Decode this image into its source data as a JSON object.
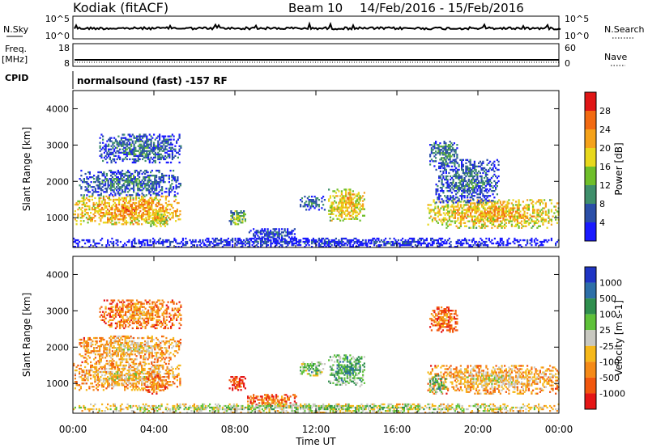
{
  "header": {
    "station": "Kodiak (fitACF)",
    "beam": "Beam 10",
    "date_range": "14/Feb/2016 - 15/Feb/2016",
    "cpid_text": "normalsound (fast) -157 RF"
  },
  "strips": {
    "nsky": {
      "label": "N.Sky",
      "ticks": [
        "10^5",
        "10^0"
      ],
      "right_ticks": [
        "10^5",
        "10^0"
      ],
      "right_label": "N.Search"
    },
    "freq": {
      "label_line1": "Freq.",
      "label_line2": "[MHz]",
      "ticks": [
        "18",
        "8"
      ],
      "right_ticks": [
        "60",
        "0"
      ],
      "right_label": "Nave"
    },
    "cpid": {
      "label": "CPID"
    }
  },
  "chart_data": [
    {
      "type": "heatmap",
      "panel": "power",
      "ylabel": "Slant Range [km]",
      "xlabel": "",
      "y_ticks": [
        1000,
        2000,
        3000,
        4000
      ],
      "ylim": [
        180,
        4500
      ],
      "colorbar": {
        "label": "Power [dB]",
        "ticks": [
          4,
          8,
          12,
          16,
          20,
          24,
          28
        ],
        "colors": [
          "#1a1aff",
          "#2b4fa8",
          "#3f8f6b",
          "#6fbf2a",
          "#e8d81c",
          "#f5a21a",
          "#f26a12",
          "#e01616"
        ]
      },
      "regions": [
        {
          "t0": 0.0,
          "t1": 5.3,
          "r0": 800,
          "r1": 1600,
          "level": 0.75
        },
        {
          "t0": 0.3,
          "t1": 5.3,
          "r0": 1600,
          "r1": 2300,
          "level": 0.3
        },
        {
          "t0": 1.3,
          "t1": 5.3,
          "r0": 2500,
          "r1": 3300,
          "level": 0.3
        },
        {
          "t0": 3.6,
          "t1": 4.6,
          "r0": 700,
          "r1": 1200,
          "level": 0.65
        },
        {
          "t0": 7.7,
          "t1": 8.5,
          "r0": 800,
          "r1": 1200,
          "level": 0.5
        },
        {
          "t0": 8.6,
          "t1": 11.0,
          "r0": 350,
          "r1": 700,
          "level": 0.2
        },
        {
          "t0": 12.6,
          "t1": 14.4,
          "r0": 900,
          "r1": 1800,
          "level": 0.7
        },
        {
          "t0": 11.2,
          "t1": 12.4,
          "r0": 1200,
          "r1": 1600,
          "level": 0.3
        },
        {
          "t0": 17.5,
          "t1": 24.0,
          "r0": 700,
          "r1": 1500,
          "level": 0.7
        },
        {
          "t0": 17.9,
          "t1": 21.0,
          "r0": 1400,
          "r1": 2600,
          "level": 0.3
        },
        {
          "t0": 17.6,
          "t1": 19.0,
          "r0": 2400,
          "r1": 3100,
          "level": 0.35
        },
        {
          "t0": 0.0,
          "t1": 24.0,
          "r0": 180,
          "r1": 420,
          "level": 0.15
        }
      ]
    },
    {
      "type": "heatmap",
      "panel": "velocity",
      "ylabel": "Slant Range [km]",
      "xlabel": "Time UT",
      "x_ticks": [
        "00:00",
        "04:00",
        "08:00",
        "12:00",
        "16:00",
        "20:00",
        "00:00"
      ],
      "xlim_hours": [
        0,
        24
      ],
      "y_ticks": [
        1000,
        2000,
        3000,
        4000
      ],
      "ylim": [
        180,
        4500
      ],
      "colorbar": {
        "label": "Velocity [m s-1]",
        "ticks": [
          "1000",
          "500",
          "100",
          "25",
          "-25",
          "-100",
          "-500",
          "-1000"
        ],
        "colors": [
          "#1f35c4",
          "#2d6fa8",
          "#2f8f4e",
          "#5fc23a",
          "#c8c8c0",
          "#f6b81a",
          "#f58a17",
          "#f2570e",
          "#e51616"
        ]
      },
      "regions": [
        {
          "t0": 0.0,
          "t1": 5.3,
          "r0": 800,
          "r1": 1600,
          "level": 0.45
        },
        {
          "t0": 0.3,
          "t1": 5.3,
          "r0": 1600,
          "r1": 2300,
          "level": 0.45
        },
        {
          "t0": 1.3,
          "t1": 5.3,
          "r0": 2500,
          "r1": 3300,
          "level": 0.35
        },
        {
          "t0": 3.6,
          "t1": 4.6,
          "r0": 700,
          "r1": 1200,
          "level": 0.3
        },
        {
          "t0": 7.7,
          "t1": 8.5,
          "r0": 800,
          "r1": 1200,
          "level": 0.2
        },
        {
          "t0": 8.6,
          "t1": 11.0,
          "r0": 350,
          "r1": 700,
          "level": 0.3
        },
        {
          "t0": 12.6,
          "t1": 14.4,
          "r0": 900,
          "r1": 1800,
          "level": 0.75
        },
        {
          "t0": 11.2,
          "t1": 12.4,
          "r0": 1200,
          "r1": 1600,
          "level": 0.7
        },
        {
          "t0": 17.5,
          "t1": 24.0,
          "r0": 700,
          "r1": 1500,
          "level": 0.45
        },
        {
          "t0": 17.6,
          "t1": 18.4,
          "r0": 700,
          "r1": 1200,
          "level": 0.75
        },
        {
          "t0": 17.6,
          "t1": 19.0,
          "r0": 2400,
          "r1": 3100,
          "level": 0.3
        },
        {
          "t0": 0.0,
          "t1": 24.0,
          "r0": 180,
          "r1": 420,
          "level": 0.6
        }
      ]
    }
  ]
}
